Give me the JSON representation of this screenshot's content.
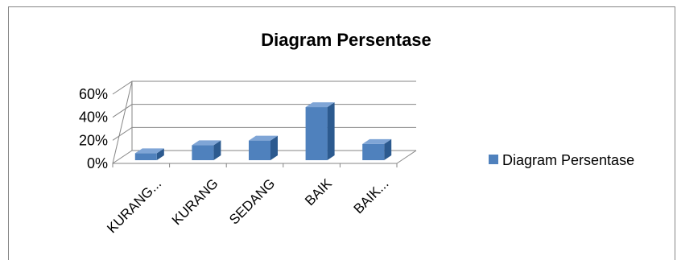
{
  "chart_data": {
    "type": "bar",
    "title": "Diagram Persentase",
    "categories": [
      "KURANG...",
      "KURANG",
      "SEDANG",
      "BAIK",
      "BAIK..."
    ],
    "series": [
      {
        "name": "Diagram Persentase",
        "values": [
          0.06,
          0.13,
          0.17,
          0.46,
          0.14
        ]
      }
    ],
    "ylim": [
      0,
      0.6
    ],
    "yticks": [
      "0%",
      "20%",
      "40%",
      "60%"
    ],
    "xlabel": "",
    "ylabel": "",
    "grid": true,
    "style": "3d-column",
    "legend_position": "right",
    "colors": {
      "bar_front": "#4F81BD",
      "bar_side": "#2C5A8F",
      "bar_top": "#7FA5D6",
      "grid": "#868686"
    }
  }
}
